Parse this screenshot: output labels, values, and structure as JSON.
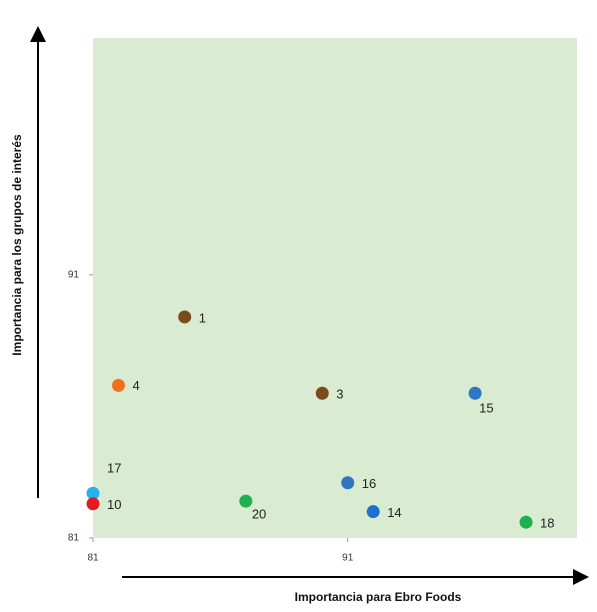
{
  "chart_data": {
    "type": "scatter",
    "x_label": "Importancia para Ebro Foods",
    "y_label": "Importancia para los grupos de interés",
    "xlim": [
      81,
      100
    ],
    "ylim": [
      81,
      100
    ],
    "xticks": [
      81,
      91
    ],
    "yticks": [
      81,
      91
    ],
    "background": "#d9ebd1",
    "points": [
      {
        "label": "1",
        "x": 84.6,
        "y": 89.4,
        "color": "#7b4a1c"
      },
      {
        "label": "4",
        "x": 82.0,
        "y": 86.8,
        "color": "#f07022"
      },
      {
        "label": "3",
        "x": 90.0,
        "y": 86.5,
        "color": "#7b4a1c"
      },
      {
        "label": "15",
        "x": 96.0,
        "y": 86.5,
        "color": "#2e75c4"
      },
      {
        "label": "16",
        "x": 91.0,
        "y": 83.1,
        "color": "#2e75c4"
      },
      {
        "label": "14",
        "x": 92.0,
        "y": 82.0,
        "color": "#1f6fd0"
      },
      {
        "label": "18",
        "x": 98.0,
        "y": 81.6,
        "color": "#1fb050"
      },
      {
        "label": "20",
        "x": 87.0,
        "y": 82.4,
        "color": "#1fb050"
      },
      {
        "label": "17",
        "x": 81.0,
        "y": 82.7,
        "color": "#29b0f0"
      },
      {
        "label": "10",
        "x": 81.0,
        "y": 82.3,
        "color": "#e01b22"
      }
    ]
  }
}
